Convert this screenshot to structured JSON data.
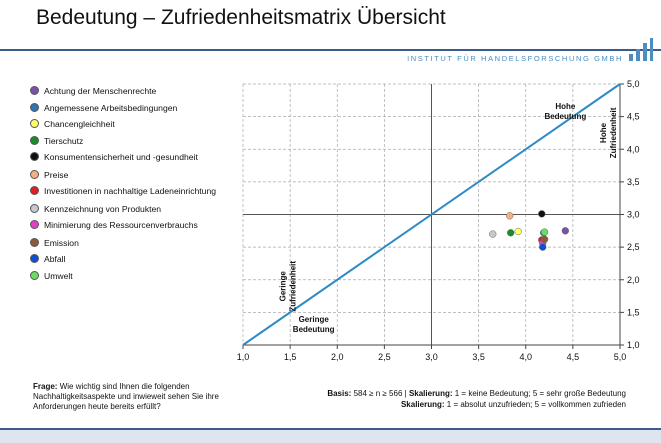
{
  "header": {
    "title": "Bedeutung – Zufriedenheitsmatrix Übersicht",
    "institute": "INSTITUT FÜR HANDELSFORSCHUNG GMBH",
    "logo_color": "#4a8fc0"
  },
  "footer": {
    "question_label": "Frage:",
    "question_text": "Wie wichtig sind Ihnen die folgenden Nachhaltigkeitsaspekte und inwieweit sehen Sie ihre Anforderungen heute bereits erfüllt?",
    "basis_label": "Basis:",
    "basis_text": "584 ≥ n ≥ 566",
    "skal1_label": "Skalierung:",
    "skal1_text": "1 = keine Bedeutung; 5 = sehr große Bedeutung",
    "skal2_label": "Skalierung:",
    "skal2_text": "1 = absolut unzufrieden; 5 = vollkommen zufrieden"
  },
  "chart_data": {
    "type": "scatter",
    "title": "Bedeutung – Zufriedenheitsmatrix Übersicht",
    "xlim": [
      1.0,
      5.0
    ],
    "ylim": [
      1.0,
      5.0
    ],
    "x_ticks": [
      "1,0",
      "1,5",
      "2,0",
      "2,5",
      "3,0",
      "3,5",
      "4,0",
      "4,5",
      "5,0"
    ],
    "y_ticks": [
      "1,0",
      "1,5",
      "2,0",
      "2,5",
      "3,0",
      "3,5",
      "4,0",
      "4,5",
      "5,0"
    ],
    "grid": "dashed grid, quadrant lines at 3,0",
    "diagonal": {
      "from": [
        1.0,
        1.0
      ],
      "to": [
        5.0,
        5.0
      ],
      "color": "#2b8ac6"
    },
    "annotations": [
      {
        "text": "Hohe Bedeutung",
        "x": 4.42,
        "y": 4.62
      },
      {
        "text": "Hohe Zufriedenheit",
        "x": 4.85,
        "y": 4.25,
        "rotated": true
      },
      {
        "text": "Geringe Zufriedenheit",
        "x": 1.45,
        "y": 1.9,
        "rotated": true
      },
      {
        "text": "Geringe Bedeutung",
        "x": 1.75,
        "y": 1.35
      }
    ],
    "series": [
      {
        "name": "Achtung der Menschenrechte",
        "color": "#7b52ab",
        "x": 4.42,
        "y": 2.75
      },
      {
        "name": "Angemessene Arbeitsbedingungen",
        "color": "#2e75b6",
        "x": 4.19,
        "y": 2.72
      },
      {
        "name": "Chancengleichheit",
        "color": "#ffff66",
        "x": 3.92,
        "y": 2.74
      },
      {
        "name": "Tierschutz",
        "color": "#1e8a2e",
        "x": 3.84,
        "y": 2.72
      },
      {
        "name": "Konsumentensicherheit und -gesundheit",
        "color": "#111111",
        "x": 4.17,
        "y": 3.01
      },
      {
        "name": "Preise",
        "color": "#f4b183",
        "x": 3.83,
        "y": 2.98
      },
      {
        "name": "Investitionen in nachhaltige Ladeneinrichtung",
        "color": "#e02020",
        "x": 4.17,
        "y": 2.61
      },
      {
        "name": "Kennzeichnung von Produkten",
        "color": "#c8c8c8",
        "x": 3.65,
        "y": 2.7
      },
      {
        "name": "Minimierung des Ressourcenverbrauchs",
        "color": "#e040c8",
        "x": 4.18,
        "y": 2.56
      },
      {
        "name": "Emission",
        "color": "#8a5a3a",
        "x": 4.2,
        "y": 2.62
      },
      {
        "name": "Abfall",
        "color": "#1050d0",
        "x": 4.18,
        "y": 2.5
      },
      {
        "name": "Umwelt",
        "color": "#66e060",
        "x": 4.2,
        "y": 2.73
      }
    ]
  }
}
